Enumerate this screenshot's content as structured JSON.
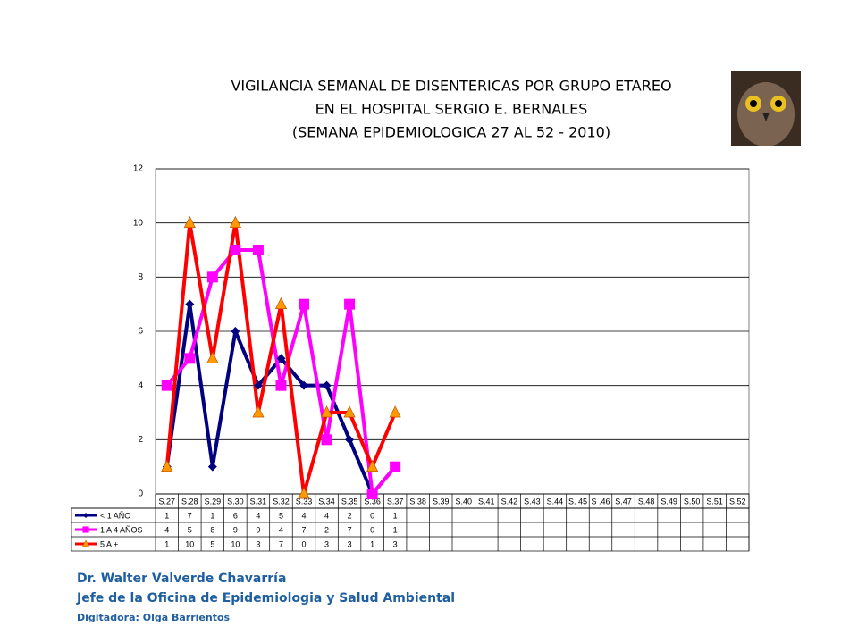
{
  "chart_data": {
    "type": "line",
    "title": [
      "VIGILANCIA SEMANAL DE DISENTERICAS POR GRUPO ETAREO",
      "EN EL HOSPITAL SERGIO E. BERNALES",
      "(SEMANA EPIDEMIOLOGICA 27 AL 52 - 2010)"
    ],
    "categories": [
      "S.27",
      "S.28",
      "S.29",
      "S.30",
      "S.31",
      "S.32",
      "S.33",
      "S.34",
      "S.35",
      "S.36",
      "S.37",
      "S.38",
      "S.39",
      "S.40",
      "S.41",
      "S.42",
      "S.43",
      "S.44",
      "S. 45",
      "S .46",
      "S.47",
      "S.48",
      "S.49",
      "S.50",
      "S.51",
      "S.52"
    ],
    "series": [
      {
        "name": "< 1 AÑO",
        "color": "#000080",
        "marker": "diamond",
        "marker_color": "#000080",
        "values": [
          1,
          7,
          1,
          6,
          4,
          5,
          4,
          4,
          2,
          0,
          1,
          null,
          null,
          null,
          null,
          null,
          null,
          null,
          null,
          null,
          null,
          null,
          null,
          null,
          null,
          null
        ]
      },
      {
        "name": "1 A 4 AÑOS",
        "color": "#ff00ff",
        "marker": "square",
        "marker_color": "#ff00ff",
        "values": [
          4,
          5,
          8,
          9,
          9,
          4,
          7,
          2,
          7,
          0,
          1,
          null,
          null,
          null,
          null,
          null,
          null,
          null,
          null,
          null,
          null,
          null,
          null,
          null,
          null,
          null
        ]
      },
      {
        "name": "5 A +",
        "color": "#ff0000",
        "marker": "triangle",
        "marker_color": "#ff9900",
        "values": [
          1,
          10,
          5,
          10,
          3,
          7,
          0,
          3,
          3,
          1,
          3,
          null,
          null,
          null,
          null,
          null,
          null,
          null,
          null,
          null,
          null,
          null,
          null,
          null,
          null,
          null
        ]
      }
    ],
    "ylim": [
      0,
      12
    ],
    "yticks": [
      0,
      2,
      4,
      6,
      8,
      10,
      12
    ],
    "grid": true,
    "data_table": true
  },
  "footer": [
    "Dr.  Walter Valverde Chavarría",
    "Jefe de la Oficina de Epidemiologia y  Salud Ambiental",
    "Digitadora: Olga Barrientos"
  ]
}
